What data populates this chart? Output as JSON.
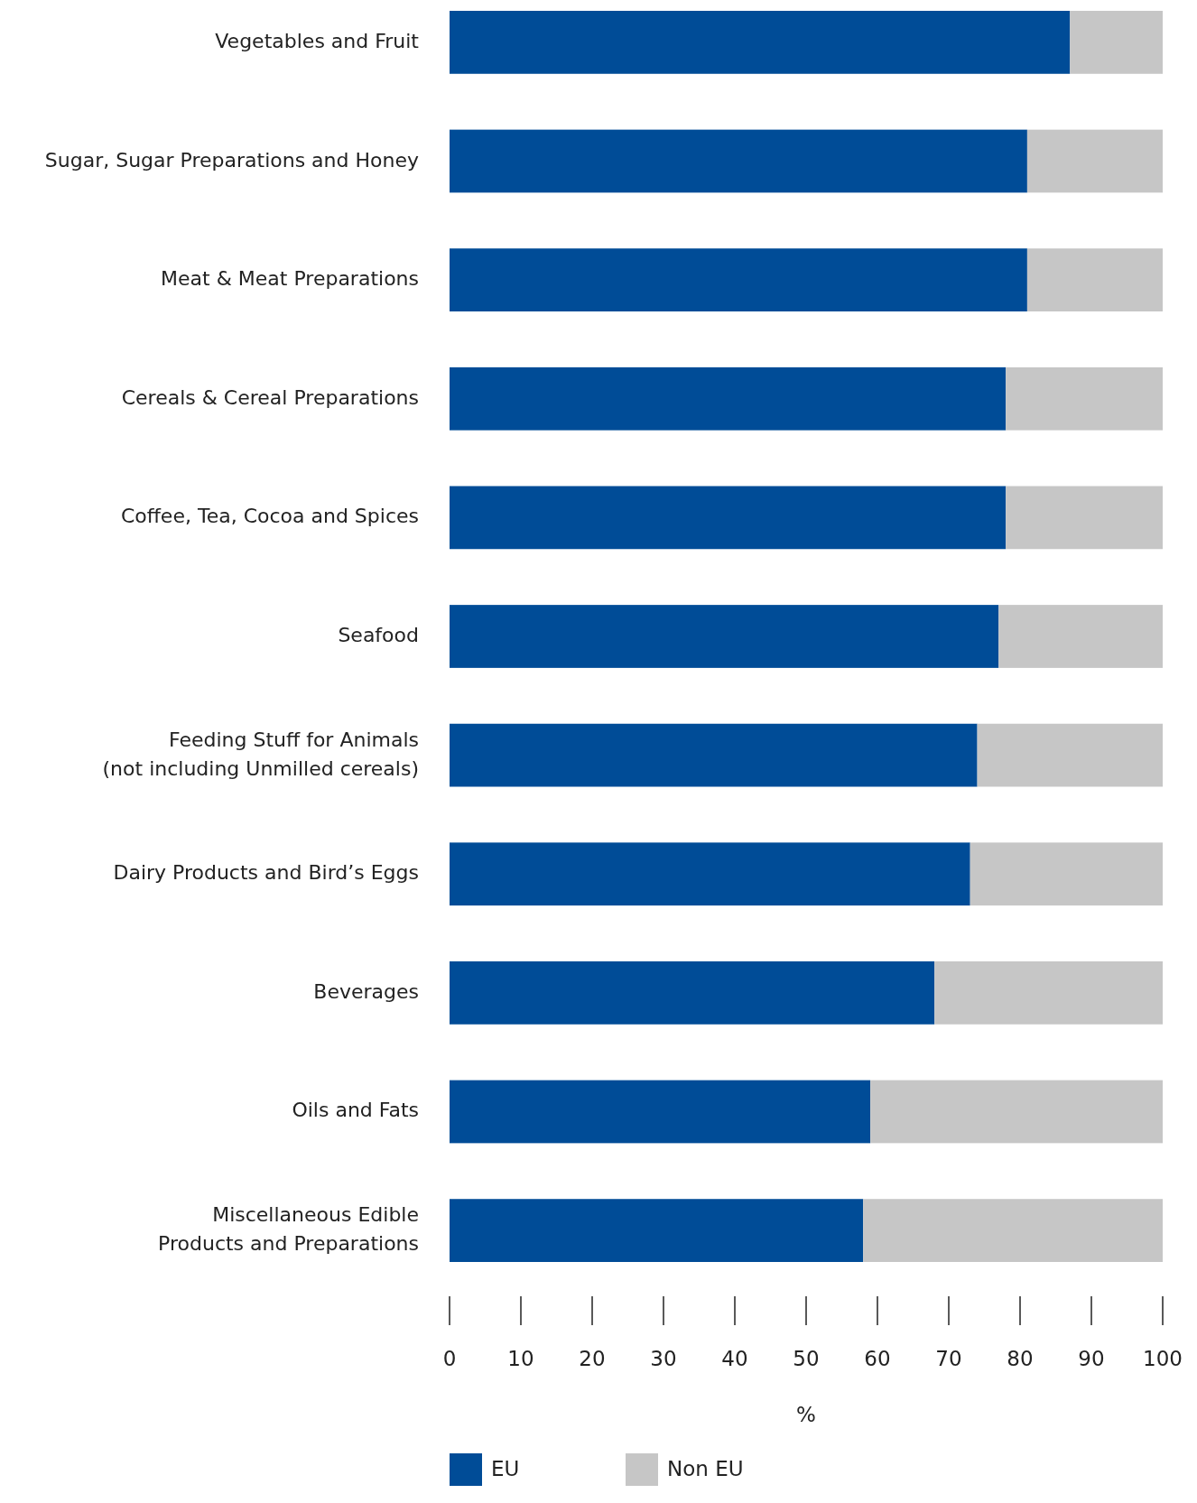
{
  "chart_data": {
    "type": "bar",
    "orientation": "horizontal",
    "stacked": true,
    "categories": [
      "Vegetables and Fruit",
      "Sugar, Sugar Preparations and Honey",
      "Meat & Meat Preparations",
      "Cereals & Cereal Preparations",
      "Coffee, Tea, Cocoa and Spices",
      "Seafood",
      "Feeding Stuff for Animals\n(not including Unmilled cereals)",
      "Dairy Products and Bird’s Eggs",
      "Beverages",
      "Oils and Fats",
      "Miscellaneous Edible\nProducts and Preparations"
    ],
    "series": [
      {
        "name": "EU",
        "color": "#004c97",
        "values": [
          87,
          81,
          81,
          78,
          78,
          77,
          74,
          73,
          68,
          59,
          58
        ]
      },
      {
        "name": "Non EU",
        "color": "#c6c6c6",
        "values": [
          13,
          19,
          19,
          22,
          22,
          23,
          26,
          27,
          32,
          41,
          42
        ]
      }
    ],
    "xlim": [
      0,
      100
    ],
    "xticks": [
      0,
      10,
      20,
      30,
      40,
      50,
      60,
      70,
      80,
      90,
      100
    ],
    "xlabel": "%",
    "legend": "bottom"
  }
}
